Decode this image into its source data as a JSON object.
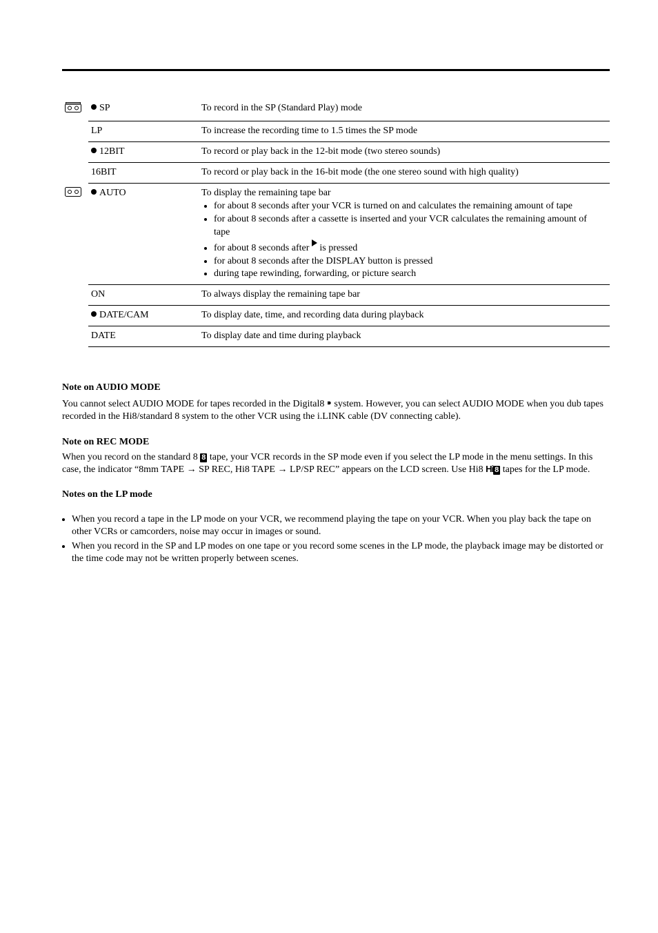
{
  "table": {
    "rows": [
      {
        "icon": "tape-fancy",
        "setting_bullet": true,
        "setting": "SP",
        "desc_html": "To record in the SP (Standard Play) mode"
      },
      {
        "setting": "LP",
        "desc_html": "To increase the recording time to 1.5 times the SP mode"
      },
      {
        "setting_bullet": true,
        "setting": "12BIT",
        "desc_html": "To record or play back in the 12-bit mode (two stereo sounds)"
      },
      {
        "setting": "16BIT",
        "desc_html": "To record or play back in the 16-bit mode (the one stereo sound with high quality)"
      },
      {
        "icon": "tape-plain",
        "setting_bullet": true,
        "setting": "AUTO",
        "desc_html": "To display the remaining tape bar",
        "sublist": [
          "for about 8 seconds after your VCR is turned on and calculates the remaining amount of tape",
          "for about 8 seconds after a cassette is inserted and your VCR calculates the remaining amount of tape",
          "for about 8 seconds after <span class='triangle'><span class='triangle-outline'></span></span> is pressed",
          "for about 8 seconds after the DISPLAY button is pressed",
          "during tape rewinding, forwarding, or picture search"
        ]
      },
      {
        "setting": "ON",
        "desc_html": "To always display the remaining tape bar"
      },
      {
        "setting_bullet": true,
        "setting": "DATE/CAM",
        "desc_html": "To display date, time, and recording data during playback"
      },
      {
        "setting": "DATE",
        "desc_html": "To display date and time during playback"
      }
    ]
  },
  "notes": {
    "audio_title": "Note on AUDIO MODE",
    "audio_body": "You cannot select AUDIO MODE for tapes recorded in the Digital8 <span class='d8icon'>⁍</span> system. However, you can select AUDIO MODE when you dub tapes recorded in the Hi8/standard 8 system to the other VCR using the i.LINK cable (DV connecting cable).",
    "recmode_title": "Note on REC MODE",
    "recmode_body": "When you record on the standard 8 <span class='blacksq'>8</span> tape, your VCR records in the SP mode even if you select the LP mode in the menu settings. In this case, the indicator “8mm TAPE → SP REC, Hi8 TAPE → LP/SP REC” appears on the LCD screen. Use Hi8 <span class='hi8'><span class='hi'>Hi</span><span class='blacksq'>8</span></span> tapes for the LP mode.",
    "lp_title": "Notes on the LP mode",
    "lp_items": [
      "When you record a tape in the LP mode on your VCR, we recommend playing the tape on your VCR. When you play back the tape on other VCRs or camcorders, noise may occur in images or sound.",
      "When you record in the SP and LP modes on one tape or you record some scenes in the LP mode, the playback image may be distorted or the time code may not be written properly between scenes."
    ]
  }
}
